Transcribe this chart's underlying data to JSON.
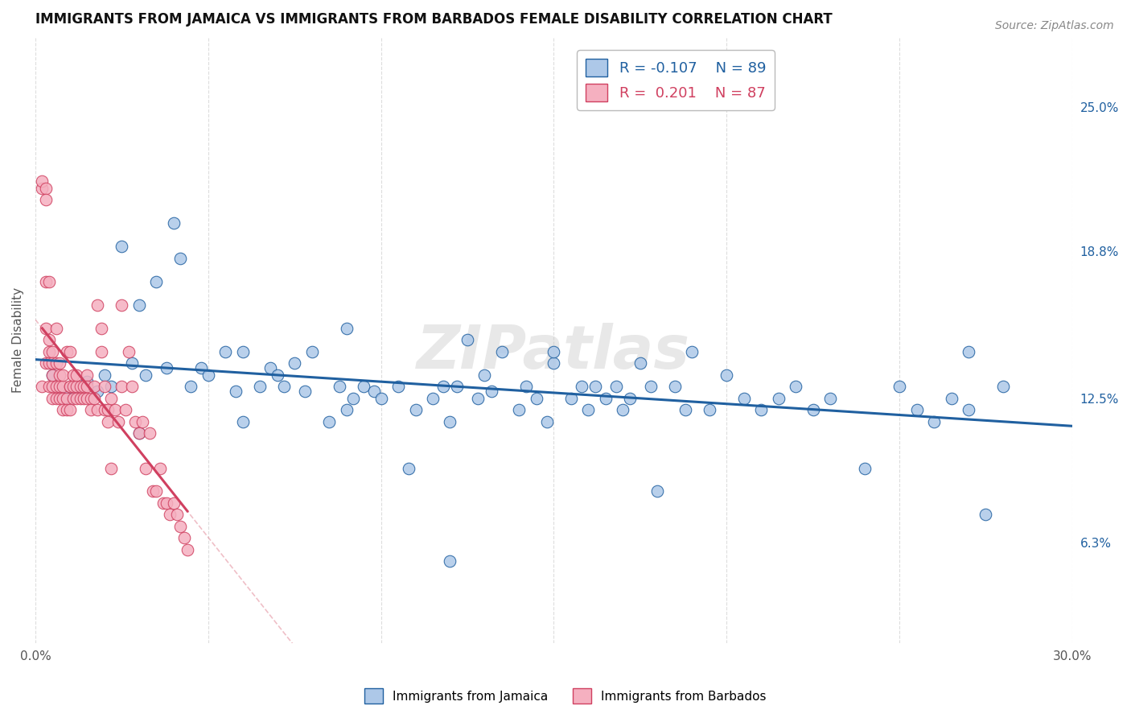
{
  "title": "IMMIGRANTS FROM JAMAICA VS IMMIGRANTS FROM BARBADOS FEMALE DISABILITY CORRELATION CHART",
  "source": "Source: ZipAtlas.com",
  "ylabel": "Female Disability",
  "right_yticks": [
    "25.0%",
    "18.8%",
    "12.5%",
    "6.3%"
  ],
  "right_ytick_vals": [
    0.25,
    0.188,
    0.125,
    0.063
  ],
  "xlim": [
    0.0,
    0.3
  ],
  "ylim": [
    0.02,
    0.28
  ],
  "legend_r1": "R = -0.107",
  "legend_n1": "N = 89",
  "legend_r2": "R =  0.201",
  "legend_n2": "N = 87",
  "watermark": "ZIPatlas",
  "jamaica_color": "#adc8e8",
  "barbados_color": "#f5b0c0",
  "jamaica_line_color": "#2060a0",
  "barbados_line_color": "#d04060",
  "jamaica_scatter_x": [
    0.005,
    0.008,
    0.01,
    0.012,
    0.015,
    0.018,
    0.02,
    0.022,
    0.025,
    0.028,
    0.03,
    0.032,
    0.035,
    0.038,
    0.04,
    0.042,
    0.045,
    0.048,
    0.05,
    0.055,
    0.058,
    0.06,
    0.065,
    0.068,
    0.07,
    0.072,
    0.075,
    0.078,
    0.08,
    0.085,
    0.088,
    0.09,
    0.092,
    0.095,
    0.098,
    0.1,
    0.105,
    0.108,
    0.11,
    0.115,
    0.118,
    0.12,
    0.122,
    0.125,
    0.128,
    0.13,
    0.132,
    0.135,
    0.14,
    0.142,
    0.145,
    0.148,
    0.15,
    0.155,
    0.158,
    0.16,
    0.162,
    0.165,
    0.168,
    0.17,
    0.172,
    0.175,
    0.178,
    0.18,
    0.185,
    0.188,
    0.19,
    0.195,
    0.2,
    0.205,
    0.21,
    0.215,
    0.22,
    0.225,
    0.23,
    0.24,
    0.25,
    0.255,
    0.26,
    0.265,
    0.27,
    0.275,
    0.28,
    0.03,
    0.06,
    0.09,
    0.12,
    0.15,
    0.27
  ],
  "jamaica_scatter_y": [
    0.135,
    0.128,
    0.125,
    0.13,
    0.132,
    0.128,
    0.135,
    0.13,
    0.19,
    0.14,
    0.165,
    0.135,
    0.175,
    0.138,
    0.2,
    0.185,
    0.13,
    0.138,
    0.135,
    0.145,
    0.128,
    0.145,
    0.13,
    0.138,
    0.135,
    0.13,
    0.14,
    0.128,
    0.145,
    0.115,
    0.13,
    0.155,
    0.125,
    0.13,
    0.128,
    0.125,
    0.13,
    0.095,
    0.12,
    0.125,
    0.13,
    0.115,
    0.13,
    0.15,
    0.125,
    0.135,
    0.128,
    0.145,
    0.12,
    0.13,
    0.125,
    0.115,
    0.14,
    0.125,
    0.13,
    0.12,
    0.13,
    0.125,
    0.13,
    0.12,
    0.125,
    0.14,
    0.13,
    0.085,
    0.13,
    0.12,
    0.145,
    0.12,
    0.135,
    0.125,
    0.12,
    0.125,
    0.13,
    0.12,
    0.125,
    0.095,
    0.13,
    0.12,
    0.115,
    0.125,
    0.12,
    0.075,
    0.13,
    0.11,
    0.115,
    0.12,
    0.055,
    0.145,
    0.145
  ],
  "barbados_scatter_x": [
    0.002,
    0.002,
    0.002,
    0.003,
    0.003,
    0.003,
    0.003,
    0.003,
    0.004,
    0.004,
    0.004,
    0.004,
    0.004,
    0.005,
    0.005,
    0.005,
    0.005,
    0.005,
    0.006,
    0.006,
    0.006,
    0.006,
    0.007,
    0.007,
    0.007,
    0.007,
    0.008,
    0.008,
    0.008,
    0.008,
    0.009,
    0.009,
    0.009,
    0.01,
    0.01,
    0.01,
    0.01,
    0.011,
    0.011,
    0.011,
    0.012,
    0.012,
    0.012,
    0.013,
    0.013,
    0.014,
    0.014,
    0.015,
    0.015,
    0.015,
    0.016,
    0.016,
    0.017,
    0.017,
    0.018,
    0.018,
    0.019,
    0.019,
    0.02,
    0.02,
    0.021,
    0.021,
    0.022,
    0.022,
    0.023,
    0.024,
    0.025,
    0.025,
    0.026,
    0.027,
    0.028,
    0.029,
    0.03,
    0.031,
    0.032,
    0.033,
    0.034,
    0.035,
    0.036,
    0.037,
    0.038,
    0.039,
    0.04,
    0.041,
    0.042,
    0.043,
    0.044
  ],
  "barbados_scatter_y": [
    0.215,
    0.218,
    0.13,
    0.215,
    0.21,
    0.175,
    0.155,
    0.14,
    0.15,
    0.145,
    0.175,
    0.13,
    0.14,
    0.13,
    0.145,
    0.14,
    0.135,
    0.125,
    0.125,
    0.155,
    0.13,
    0.14,
    0.14,
    0.135,
    0.13,
    0.125,
    0.13,
    0.125,
    0.12,
    0.135,
    0.125,
    0.12,
    0.145,
    0.13,
    0.145,
    0.13,
    0.12,
    0.13,
    0.135,
    0.125,
    0.13,
    0.135,
    0.125,
    0.125,
    0.13,
    0.125,
    0.13,
    0.135,
    0.125,
    0.13,
    0.125,
    0.12,
    0.13,
    0.125,
    0.12,
    0.165,
    0.155,
    0.145,
    0.13,
    0.12,
    0.12,
    0.115,
    0.125,
    0.095,
    0.12,
    0.115,
    0.165,
    0.13,
    0.12,
    0.145,
    0.13,
    0.115,
    0.11,
    0.115,
    0.095,
    0.11,
    0.085,
    0.085,
    0.095,
    0.08,
    0.08,
    0.075,
    0.08,
    0.075,
    0.07,
    0.065,
    0.06
  ]
}
